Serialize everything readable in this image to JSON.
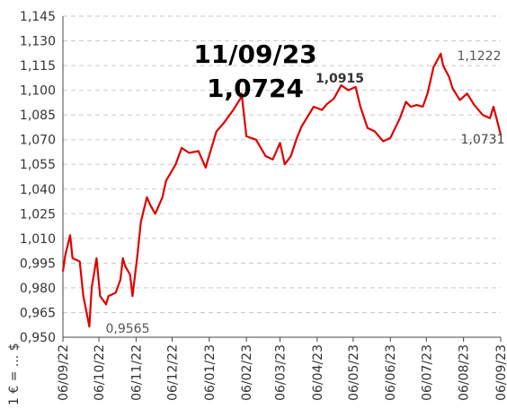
{
  "chart_data": {
    "type": "line",
    "y_label": "1 € = ... $",
    "annotations": [
      "11/09/23",
      "1,0724",
      "1,0915",
      "1,1222",
      "1,0731",
      "0,9565"
    ],
    "x": [
      "2022-09-06",
      "2022-09-08",
      "2022-09-12",
      "2022-09-14",
      "2022-09-20",
      "2022-09-23",
      "2022-09-28",
      "2022-09-30",
      "2022-10-04",
      "2022-10-07",
      "2022-10-12",
      "2022-10-14",
      "2022-10-20",
      "2022-10-24",
      "2022-10-26",
      "2022-10-28",
      "2022-11-01",
      "2022-11-03",
      "2022-11-07",
      "2022-11-10",
      "2022-11-15",
      "2022-11-18",
      "2022-11-22",
      "2022-11-28",
      "2022-12-01",
      "2022-12-05",
      "2022-12-09",
      "2022-12-14",
      "2022-12-20",
      "2022-12-28",
      "2023-01-03",
      "2023-01-05",
      "2023-01-12",
      "2023-01-18",
      "2023-01-26",
      "2023-02-01",
      "2023-02-02",
      "2023-02-06",
      "2023-02-14",
      "2023-02-22",
      "2023-02-28",
      "2023-03-06",
      "2023-03-10",
      "2023-03-15",
      "2023-03-20",
      "2023-03-24",
      "2023-04-03",
      "2023-04-10",
      "2023-04-14",
      "2023-04-20",
      "2023-04-26",
      "2023-05-02",
      "2023-05-08",
      "2023-05-12",
      "2023-05-18",
      "2023-05-24",
      "2023-05-31",
      "2023-06-06",
      "2023-06-14",
      "2023-06-19",
      "2023-06-23",
      "2023-06-28",
      "2023-07-03",
      "2023-07-07",
      "2023-07-12",
      "2023-07-18",
      "2023-07-20",
      "2023-07-25",
      "2023-07-28",
      "2023-08-03",
      "2023-08-09",
      "2023-08-15",
      "2023-08-22",
      "2023-08-28",
      "2023-08-31",
      "2023-09-06"
    ],
    "series": [
      {
        "name": "EUR/USD",
        "color": "#e00000",
        "values": [
          0.99,
          1.0,
          1.012,
          0.998,
          0.996,
          0.975,
          0.9565,
          0.98,
          0.998,
          0.975,
          0.97,
          0.975,
          0.977,
          0.985,
          0.998,
          0.993,
          0.988,
          0.975,
          0.999,
          1.02,
          1.035,
          1.03,
          1.025,
          1.035,
          1.045,
          1.05,
          1.055,
          1.065,
          1.062,
          1.063,
          1.053,
          1.058,
          1.075,
          1.08,
          1.088,
          1.095,
          1.098,
          1.072,
          1.07,
          1.06,
          1.058,
          1.068,
          1.055,
          1.06,
          1.071,
          1.078,
          1.09,
          1.088,
          1.0915,
          1.095,
          1.103,
          1.1,
          1.102,
          1.09,
          1.077,
          1.075,
          1.069,
          1.071,
          1.083,
          1.093,
          1.09,
          1.091,
          1.09,
          1.098,
          1.114,
          1.1222,
          1.115,
          1.108,
          1.101,
          1.094,
          1.098,
          1.091,
          1.085,
          1.083,
          1.09,
          1.0731
        ]
      }
    ],
    "xlim": [
      "2022-09-06",
      "2023-09-06"
    ],
    "xticks": [
      {
        "value": "2022-09-06",
        "label": "06/09/22"
      },
      {
        "value": "2022-10-06",
        "label": "06/10/22"
      },
      {
        "value": "2022-11-06",
        "label": "06/11/22"
      },
      {
        "value": "2022-12-06",
        "label": "06/12/22"
      },
      {
        "value": "2023-01-06",
        "label": "06/01/23"
      },
      {
        "value": "2023-02-06",
        "label": "06/02/23"
      },
      {
        "value": "2023-03-06",
        "label": "06/03/23"
      },
      {
        "value": "2023-04-06",
        "label": "06/04/23"
      },
      {
        "value": "2023-05-06",
        "label": "06/05/23"
      },
      {
        "value": "2023-06-06",
        "label": "06/06/23"
      },
      {
        "value": "2023-07-06",
        "label": "06/07/23"
      },
      {
        "value": "2023-08-06",
        "label": "06/08/23"
      },
      {
        "value": "2023-09-06",
        "label": "06/09/23"
      }
    ],
    "ylim": [
      0.95,
      1.145
    ],
    "yticks": [
      {
        "value": 0.95,
        "label": "0,950"
      },
      {
        "value": 0.965,
        "label": "0,965"
      },
      {
        "value": 0.98,
        "label": "0,980"
      },
      {
        "value": 0.995,
        "label": "0,995"
      },
      {
        "value": 1.01,
        "label": "1,010"
      },
      {
        "value": 1.025,
        "label": "1,025"
      },
      {
        "value": 1.04,
        "label": "1,040"
      },
      {
        "value": 1.055,
        "label": "1,055"
      },
      {
        "value": 1.07,
        "label": "1,070"
      },
      {
        "value": 1.085,
        "label": "1,085"
      },
      {
        "value": 1.1,
        "label": "1,100"
      },
      {
        "value": 1.115,
        "label": "1,115"
      },
      {
        "value": 1.13,
        "label": "1,130"
      },
      {
        "value": 1.145,
        "label": "1,145"
      }
    ],
    "grid": true
  }
}
